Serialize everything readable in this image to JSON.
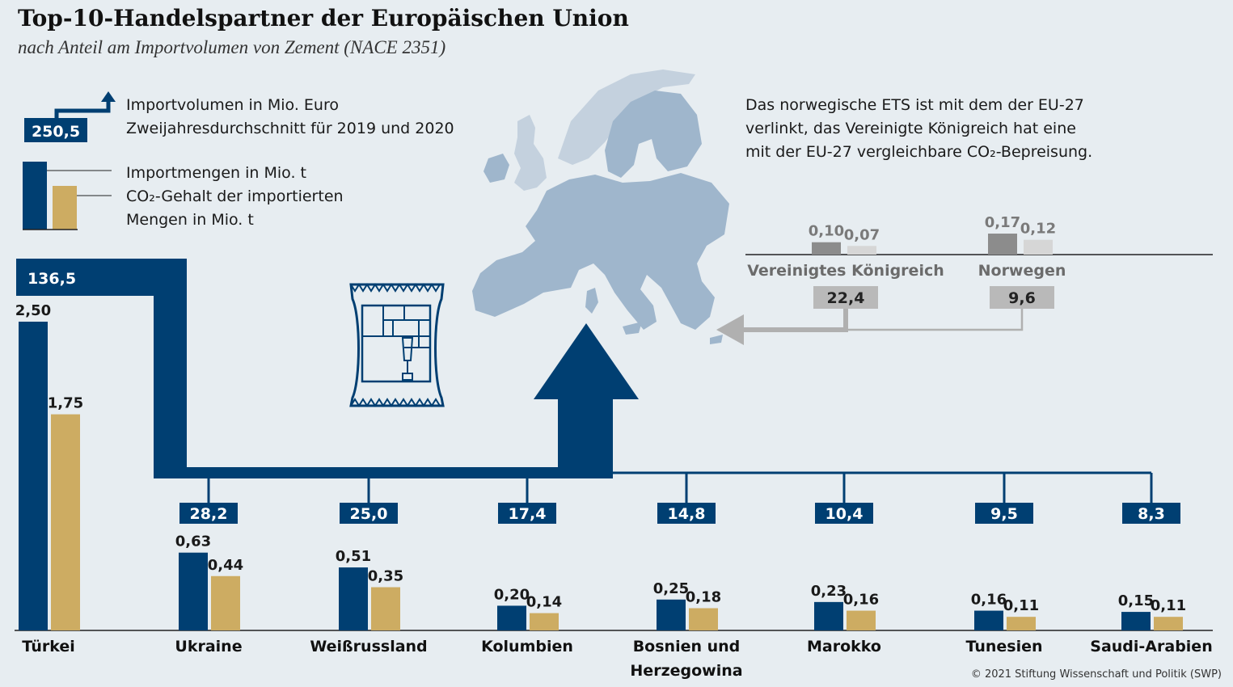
{
  "header": {
    "title": "Top-10-Handelspartner der Europäischen Union",
    "subtitle": "nach Anteil am Importvolumen von Zement (NACE 2351)"
  },
  "legend": {
    "volume_sample": "250,5",
    "volume_line1": "Importvolumen in Mio. Euro",
    "volume_line2": "Zweijahresdurchschnitt für 2019 und 2020",
    "bar_line1": "Importmengen in Mio. t",
    "bar_line2": "CO₂-Gehalt der importierten",
    "bar_line3": "Mengen in Mio. t"
  },
  "note": {
    "line1": "Das norwegische ETS ist mit dem der EU-27",
    "line2": "verlinkt, das Vereinigte Königreich hat eine",
    "line3": "mit der EU-27 vergleichbare CO₂-Bepreisung."
  },
  "colors": {
    "import": "#003f72",
    "co2": "#cdac62",
    "grey_dark": "#8c8c8c",
    "grey_light": "#d6d6d6",
    "background": "#e7edf1",
    "map": "#9fb6cc"
  },
  "icons": [
    "cement-bag-icon",
    "arrow-up-icon",
    "arrow-left-icon"
  ],
  "chart_data": [
    {
      "type": "bar",
      "categories": [
        "Türkei",
        "Ukraine",
        "Weißrussland",
        "Kolumbien",
        "Bosnien und Herzegowina",
        "Marokko",
        "Tunesien",
        "Saudi-Arabien"
      ],
      "category_labels": [
        [
          "Türkei"
        ],
        [
          "Ukraine"
        ],
        [
          "Weißrussland"
        ],
        [
          "Kolumbien"
        ],
        [
          "Bosnien und",
          "Herzegowina"
        ],
        [
          "Marokko"
        ],
        [
          "Tunesien"
        ],
        [
          "Saudi-Arabien"
        ]
      ],
      "series": [
        {
          "name": "Importmengen in Mio. t",
          "values": [
            2.5,
            0.63,
            0.51,
            0.2,
            0.25,
            0.23,
            0.16,
            0.15
          ],
          "labels": [
            "2,50",
            "0,63",
            "0,51",
            "0,20",
            "0,25",
            "0,23",
            "0,16",
            "0,15"
          ]
        },
        {
          "name": "CO₂-Gehalt der importierten Mengen in Mio. t",
          "values": [
            1.75,
            0.44,
            0.35,
            0.14,
            0.18,
            0.16,
            0.11,
            0.11
          ],
          "labels": [
            "1,75",
            "0,44",
            "0,35",
            "0,14",
            "0,18",
            "0,16",
            "0,11",
            "0,11"
          ]
        }
      ],
      "import_volume_mio_euro": [
        136.5,
        28.2,
        25.0,
        17.4,
        14.8,
        10.4,
        9.5,
        8.3
      ],
      "import_volume_labels": [
        "136,5",
        "28,2",
        "25,0",
        "17,4",
        "14,8",
        "10,4",
        "9,5",
        "8,3"
      ],
      "ylim": [
        0,
        2.5
      ]
    },
    {
      "type": "bar",
      "categories": [
        "Vereinigtes Königreich",
        "Norwegen"
      ],
      "series": [
        {
          "name": "Importmengen in Mio. t",
          "values": [
            0.1,
            0.17
          ],
          "labels": [
            "0,10",
            "0,17"
          ]
        },
        {
          "name": "CO₂-Gehalt der importierten Mengen in Mio. t",
          "values": [
            0.07,
            0.12
          ],
          "labels": [
            "0,07",
            "0,12"
          ]
        }
      ],
      "import_volume_mio_euro": [
        22.4,
        9.6
      ],
      "import_volume_labels": [
        "22,4",
        "9,6"
      ],
      "ylim": [
        0,
        2.5
      ]
    }
  ],
  "credit": "© 2021 Stiftung Wissenschaft und Politik (SWP)"
}
